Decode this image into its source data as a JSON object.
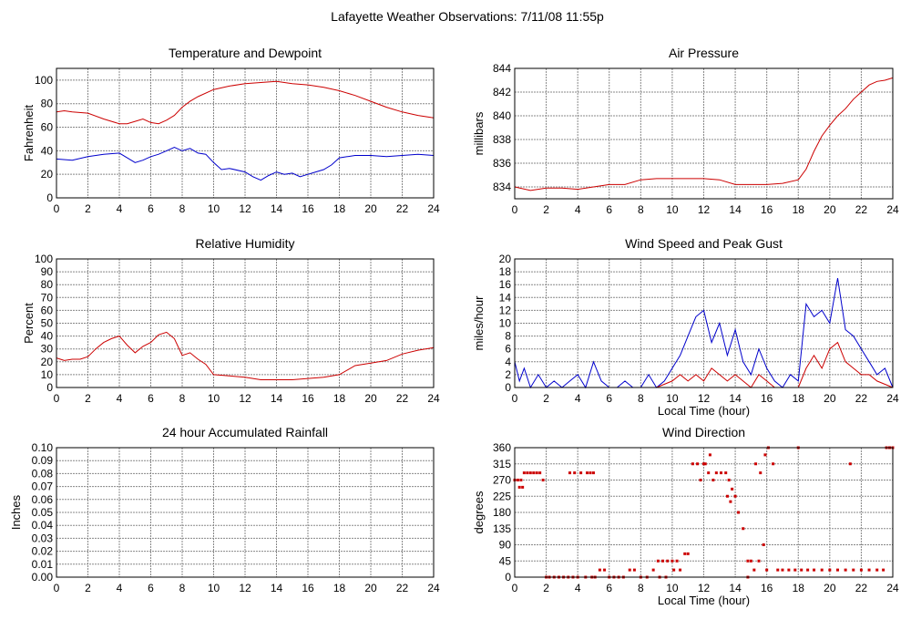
{
  "title": "Lafayette Weather Observations: 7/11/08 11:55p",
  "colors": {
    "red": "#cc0000",
    "blue": "#0000cc",
    "grid": "#888888"
  },
  "chart_data": [
    {
      "id": "temp",
      "type": "line",
      "title": "Temperature and Dewpoint",
      "xlabel": "",
      "ylabel": "Fahrenheit",
      "xlim": [
        0,
        24
      ],
      "ylim": [
        0,
        110
      ],
      "xticks": [
        0,
        2,
        4,
        6,
        8,
        10,
        12,
        14,
        16,
        18,
        20,
        22,
        24
      ],
      "yticks": [
        0,
        20,
        40,
        60,
        80,
        100
      ],
      "grid": true,
      "series": [
        {
          "color": "#cc0000",
          "x": [
            0,
            0.5,
            1,
            2,
            3,
            4,
            4.5,
            5,
            5.5,
            6,
            6.5,
            7,
            7.5,
            8,
            8.5,
            9,
            10,
            11,
            12,
            13,
            14,
            15,
            16,
            17,
            18,
            19,
            20,
            21,
            22,
            23,
            24
          ],
          "y": [
            73,
            74,
            73,
            72,
            67,
            63,
            63,
            65,
            67,
            64,
            63,
            66,
            70,
            77,
            82,
            86,
            92,
            95,
            97,
            98,
            99,
            97,
            96,
            94,
            91,
            87,
            82,
            77,
            73,
            70,
            68
          ]
        },
        {
          "color": "#0000cc",
          "x": [
            0,
            1,
            2,
            3,
            4,
            4.5,
            5,
            5.5,
            6,
            6.5,
            7,
            7.5,
            8,
            8.5,
            9,
            9.5,
            10,
            10.5,
            11,
            12,
            12.5,
            13,
            13.5,
            14,
            14.5,
            15,
            15.5,
            16,
            16.5,
            17,
            17.5,
            18,
            19,
            20,
            21,
            22,
            23,
            24
          ],
          "y": [
            33,
            32,
            35,
            37,
            38,
            34,
            30,
            32,
            35,
            37,
            40,
            43,
            40,
            42,
            38,
            37,
            30,
            24,
            25,
            22,
            18,
            15,
            19,
            22,
            20,
            21,
            18,
            20,
            22,
            24,
            28,
            34,
            36,
            36,
            35,
            36,
            37,
            36
          ]
        }
      ]
    },
    {
      "id": "pressure",
      "type": "line",
      "title": "Air Pressure",
      "xlabel": "",
      "ylabel": "millibars",
      "xlim": [
        0,
        24
      ],
      "ylim": [
        833,
        844
      ],
      "xticks": [
        0,
        2,
        4,
        6,
        8,
        10,
        12,
        14,
        16,
        18,
        20,
        22,
        24
      ],
      "yticks": [
        834,
        836,
        838,
        840,
        842,
        844
      ],
      "grid": true,
      "series": [
        {
          "color": "#cc0000",
          "x": [
            0,
            1,
            2,
            3,
            4,
            5,
            6,
            7,
            8,
            9,
            10,
            11,
            12,
            13,
            14,
            15,
            16,
            17,
            18,
            18.5,
            19,
            19.5,
            20,
            20.5,
            21,
            21.5,
            22,
            22.5,
            23,
            23.5,
            24
          ],
          "y": [
            834.0,
            833.7,
            833.9,
            833.9,
            833.8,
            834.0,
            834.2,
            834.2,
            834.6,
            834.7,
            834.7,
            834.7,
            834.7,
            834.6,
            834.2,
            834.2,
            834.2,
            834.3,
            834.6,
            835.5,
            837.0,
            838.3,
            839.2,
            840.0,
            840.6,
            841.4,
            842.0,
            842.6,
            842.9,
            843.0,
            843.2
          ]
        }
      ]
    },
    {
      "id": "humidity",
      "type": "line",
      "title": "Relative Humidity",
      "xlabel": "",
      "ylabel": "Percent",
      "xlim": [
        0,
        24
      ],
      "ylim": [
        0,
        100
      ],
      "xticks": [
        0,
        2,
        4,
        6,
        8,
        10,
        12,
        14,
        16,
        18,
        20,
        22,
        24
      ],
      "yticks": [
        0,
        10,
        20,
        30,
        40,
        50,
        60,
        70,
        80,
        90,
        100
      ],
      "grid": true,
      "series": [
        {
          "color": "#cc0000",
          "x": [
            0,
            0.5,
            1,
            1.5,
            2,
            2.5,
            3,
            3.5,
            4,
            4.5,
            5,
            5.5,
            6,
            6.5,
            7,
            7.5,
            8,
            8.5,
            9,
            9.5,
            10,
            11,
            12,
            13,
            14,
            15,
            16,
            17,
            18,
            19,
            20,
            21,
            22,
            23,
            24
          ],
          "y": [
            23,
            21,
            22,
            22,
            24,
            30,
            35,
            38,
            40,
            33,
            27,
            32,
            35,
            41,
            43,
            38,
            25,
            27,
            22,
            18,
            10,
            9,
            8,
            6,
            6,
            6,
            7,
            8,
            10,
            17,
            19,
            21,
            26,
            29,
            31
          ]
        }
      ]
    },
    {
      "id": "wind",
      "type": "line",
      "title": "Wind Speed and Peak Gust",
      "xlabel": "Local Time (hour)",
      "ylabel": "miles/hour",
      "xlim": [
        0,
        24
      ],
      "ylim": [
        0,
        20
      ],
      "xticks": [
        0,
        2,
        4,
        6,
        8,
        10,
        12,
        14,
        16,
        18,
        20,
        22,
        24
      ],
      "yticks": [
        0,
        2,
        4,
        6,
        8,
        10,
        12,
        14,
        16,
        18,
        20
      ],
      "grid": true,
      "series": [
        {
          "color": "#0000cc",
          "x": [
            0,
            0.3,
            0.6,
            1,
            1.5,
            2,
            2.5,
            3,
            3.5,
            4,
            4.5,
            5,
            5.5,
            6,
            6.5,
            7,
            7.5,
            8,
            8.5,
            9,
            9.5,
            10,
            10.5,
            11,
            11.5,
            12,
            12.5,
            13,
            13.5,
            14,
            14.5,
            15,
            15.5,
            16,
            16.5,
            17,
            17.5,
            18,
            18.5,
            19,
            19.5,
            20,
            20.5,
            21,
            21.5,
            22,
            22.5,
            23,
            23.5,
            24
          ],
          "y": [
            4,
            1,
            3,
            0,
            2,
            0,
            1,
            0,
            1,
            2,
            0,
            4,
            1,
            0,
            0,
            1,
            0,
            0,
            2,
            0,
            1,
            3,
            5,
            8,
            11,
            12,
            7,
            10,
            5,
            9,
            4,
            2,
            6,
            3,
            1,
            0,
            2,
            1,
            13,
            11,
            12,
            10,
            17,
            9,
            8,
            6,
            4,
            2,
            3,
            0
          ]
        },
        {
          "color": "#cc0000",
          "x": [
            0,
            1,
            2,
            3,
            4,
            5,
            6,
            7,
            8,
            9,
            10,
            10.5,
            11,
            11.5,
            12,
            12.5,
            13,
            13.5,
            14,
            14.5,
            15,
            15.5,
            16,
            16.5,
            17,
            17.5,
            18,
            18.5,
            19,
            19.5,
            20,
            20.5,
            21,
            21.5,
            22,
            22.5,
            23,
            24
          ],
          "y": [
            0,
            0,
            0,
            0,
            0,
            0,
            0,
            0,
            0,
            0,
            1,
            2,
            1,
            2,
            1,
            3,
            2,
            1,
            2,
            1,
            0,
            2,
            1,
            0,
            0,
            0,
            0,
            3,
            5,
            3,
            6,
            7,
            4,
            3,
            2,
            2,
            1,
            0
          ]
        }
      ]
    },
    {
      "id": "rain",
      "type": "line",
      "title": "24 hour Accumulated Rainfall",
      "xlabel": "",
      "ylabel": "Inches",
      "xlim": [
        0,
        24
      ],
      "ylim": [
        0,
        0.1
      ],
      "xticks": [
        0,
        2,
        4,
        6,
        8,
        10,
        12,
        14,
        16,
        18,
        20,
        22,
        24
      ],
      "yticks": [
        0.0,
        0.01,
        0.02,
        0.03,
        0.04,
        0.05,
        0.06,
        0.07,
        0.08,
        0.09,
        0.1
      ],
      "ytick_labels": [
        "0.00",
        "0.01",
        "0.02",
        "0.03",
        "0.04",
        "0.05",
        "0.06",
        "0.07",
        "0.08",
        "0.09",
        "0.10"
      ],
      "grid": true,
      "series": [
        {
          "color": "#cc0000",
          "x": [
            0,
            24
          ],
          "y": [
            0,
            0
          ]
        }
      ]
    },
    {
      "id": "direction",
      "type": "scatter",
      "title": "Wind Direction",
      "xlabel": "Local Time (hour)",
      "ylabel": "degrees",
      "xlim": [
        0,
        24
      ],
      "ylim": [
        0,
        360
      ],
      "xticks": [
        0,
        2,
        4,
        6,
        8,
        10,
        12,
        14,
        16,
        18,
        20,
        22,
        24
      ],
      "yticks": [
        0,
        45,
        90,
        135,
        180,
        225,
        270,
        315,
        360
      ],
      "grid": true,
      "series": [
        {
          "color": "#cc0000",
          "x": [
            0,
            0.2,
            0.4,
            0.6,
            0.8,
            1.0,
            1.2,
            1.4,
            1.6,
            1.8,
            2.0,
            0.3,
            0.5,
            2.2,
            2.5,
            2.8,
            3.1,
            3.4,
            3.7,
            4.0,
            4.5,
            4.9,
            5.1,
            3.5,
            3.8,
            4.2,
            4.6,
            4.8,
            5.0,
            5.4,
            5.7,
            6.0,
            6.3,
            6.6,
            6.9,
            7.3,
            7.6,
            8.0,
            8.4,
            8.8,
            9.1,
            9.4,
            9.7,
            10.0,
            10.3,
            9.2,
            9.6,
            10.1,
            10.5,
            10.8,
            11.0,
            11.3,
            11.6,
            12.0,
            12.3,
            12.6,
            11.8,
            12.1,
            12.4,
            12.8,
            13.1,
            13.4,
            13.6,
            13.8,
            14.0,
            13.5,
            13.7,
            14.2,
            14.5,
            14.8,
            15.0,
            15.3,
            15.6,
            15.9,
            16.1,
            16.4,
            16.7,
            17.0,
            17.4,
            17.8,
            18.2,
            18.6,
            19.0,
            19.5,
            20.0,
            20.5,
            21.0,
            21.5,
            22.0,
            22.5,
            23.0,
            23.4,
            23.6,
            23.8,
            24.0,
            15.2,
            15.5,
            15.8,
            16.0,
            14.8,
            18.0,
            21.3
          ],
          "y": [
            270,
            270,
            270,
            290,
            290,
            290,
            290,
            290,
            290,
            270,
            0,
            250,
            250,
            0,
            0,
            0,
            0,
            0,
            0,
            0,
            0,
            0,
            0,
            290,
            290,
            290,
            290,
            290,
            290,
            20,
            20,
            0,
            0,
            0,
            0,
            20,
            20,
            0,
            0,
            20,
            45,
            45,
            45,
            45,
            45,
            0,
            0,
            20,
            20,
            65,
            65,
            315,
            315,
            315,
            290,
            270,
            270,
            315,
            340,
            290,
            290,
            290,
            270,
            245,
            225,
            225,
            210,
            180,
            135,
            45,
            45,
            315,
            290,
            340,
            360,
            315,
            20,
            20,
            20,
            20,
            20,
            20,
            20,
            20,
            20,
            20,
            20,
            20,
            20,
            20,
            20,
            20,
            360,
            360,
            360,
            20,
            45,
            90,
            20,
            0,
            370,
            315
          ]
        }
      ]
    }
  ]
}
